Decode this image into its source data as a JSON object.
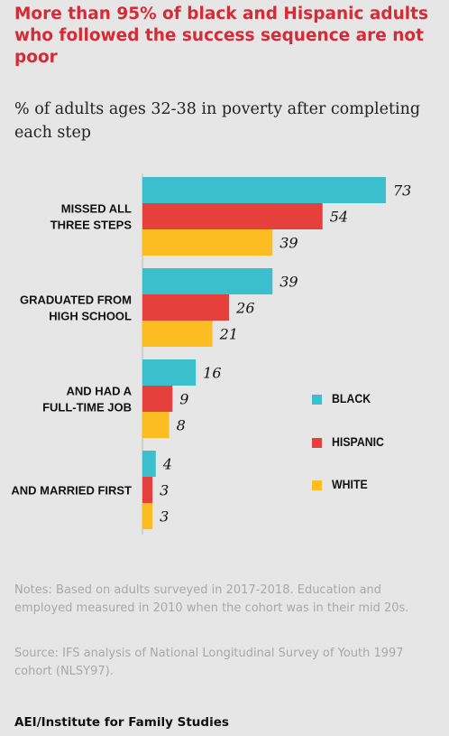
{
  "title": "More than 95% of black and Hispanic adults who followed the success sequence are not poor",
  "subtitle": "% of adults ages 32-38 in poverty after completing each step",
  "colors": {
    "black": "#3bbfcc",
    "hispanic": "#e5403c",
    "white": "#fbbd22",
    "title": "#d52b36",
    "background": "#e6e6e6"
  },
  "legend": [
    {
      "label": "BLACK",
      "color": "#3bbfcc"
    },
    {
      "label": "HISPANIC",
      "color": "#e5403c"
    },
    {
      "label": "WHITE",
      "color": "#fbbd22"
    }
  ],
  "notes": "Notes: Based on adults surveyed in 2017-2018. Education and employed measured in 2010 when the cohort was in their mid 20s.",
  "source": "Source: IFS analysis of National Longitudinal Survey of Youth 1997 cohort (NLSY97).",
  "footer": "AEI/Institute for Family Studies",
  "chart_data": {
    "type": "bar",
    "orientation": "horizontal",
    "categories": [
      [
        "MISSED ALL",
        "THREE STEPS"
      ],
      [
        "GRADUATED FROM",
        "HIGH SCHOOL"
      ],
      [
        "AND HAD A",
        "FULL-TIME JOB"
      ],
      [
        "AND MARRIED FIRST"
      ]
    ],
    "series": [
      {
        "name": "BLACK",
        "color": "#3bbfcc",
        "values": [
          73,
          39,
          16,
          4
        ]
      },
      {
        "name": "HISPANIC",
        "color": "#e5403c",
        "values": [
          54,
          26,
          9,
          3
        ]
      },
      {
        "name": "WHITE",
        "color": "#fbbd22",
        "values": [
          39,
          21,
          8,
          3
        ]
      }
    ],
    "data_labels": true,
    "grid": false,
    "legend_position": "right"
  }
}
